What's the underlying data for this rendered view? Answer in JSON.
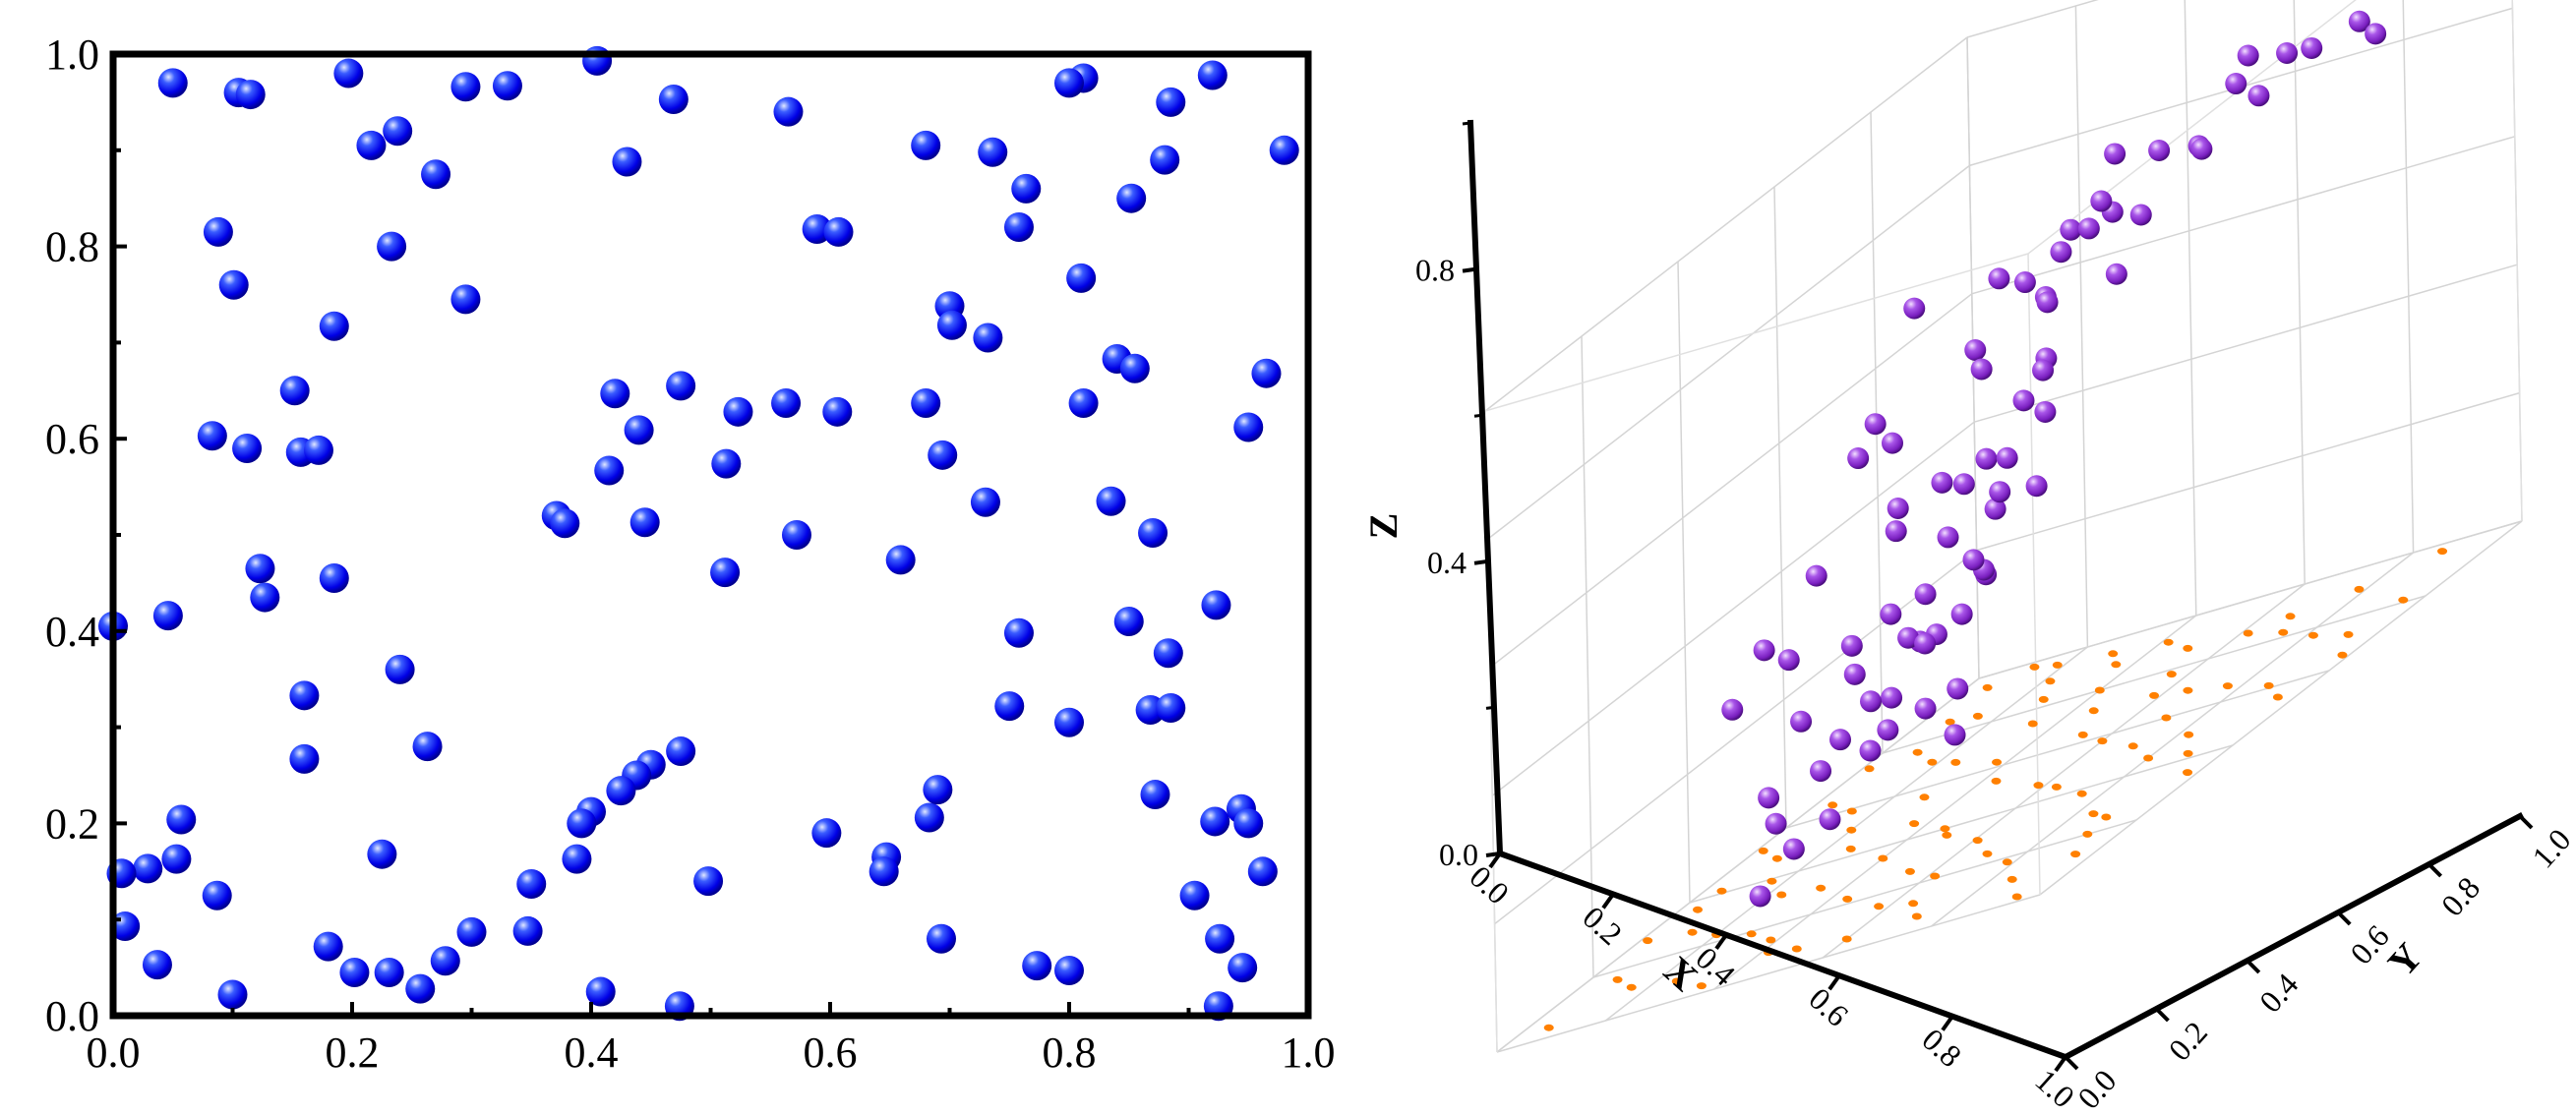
{
  "colors": {
    "left_points": "#0000ff",
    "right_points": "#9b30d9",
    "projection": "#ff8000",
    "axes": "#000000",
    "grid": "#d4d4d4"
  },
  "chart_data": [
    {
      "type": "scatter",
      "title": "",
      "xlabel": "",
      "ylabel": "",
      "xlim": [
        0,
        1
      ],
      "ylim": [
        0,
        1
      ],
      "xticks": [
        "0.0",
        "0.2",
        "0.4",
        "0.6",
        "0.8",
        "1.0"
      ],
      "yticks": [
        "0.0",
        "0.2",
        "0.4",
        "0.6",
        "0.8",
        "1.0"
      ],
      "grid": false,
      "marker": "sphere",
      "points": [
        [
          0.05,
          0.97
        ],
        [
          0.105,
          0.96
        ],
        [
          0.115,
          0.958
        ],
        [
          0.197,
          0.98
        ],
        [
          0.295,
          0.966
        ],
        [
          0.33,
          0.967
        ],
        [
          0.405,
          0.993
        ],
        [
          0.469,
          0.953
        ],
        [
          0.565,
          0.94
        ],
        [
          0.92,
          0.978
        ],
        [
          0.812,
          0.975
        ],
        [
          0.8,
          0.97
        ],
        [
          0.216,
          0.905
        ],
        [
          0.238,
          0.92
        ],
        [
          0.27,
          0.875
        ],
        [
          0.43,
          0.888
        ],
        [
          0.68,
          0.905
        ],
        [
          0.736,
          0.898
        ],
        [
          0.764,
          0.86
        ],
        [
          0.885,
          0.95
        ],
        [
          0.88,
          0.89
        ],
        [
          0.98,
          0.9
        ],
        [
          0.088,
          0.815
        ],
        [
          0.101,
          0.76
        ],
        [
          0.233,
          0.8
        ],
        [
          0.295,
          0.745
        ],
        [
          0.589,
          0.818
        ],
        [
          0.607,
          0.815
        ],
        [
          0.758,
          0.82
        ],
        [
          0.852,
          0.85
        ],
        [
          0.185,
          0.717
        ],
        [
          0.81,
          0.767
        ],
        [
          0.7,
          0.738
        ],
        [
          0.702,
          0.718
        ],
        [
          0.732,
          0.705
        ],
        [
          0.84,
          0.683
        ],
        [
          0.855,
          0.673
        ],
        [
          0.965,
          0.668
        ],
        [
          0.152,
          0.65
        ],
        [
          0.083,
          0.603
        ],
        [
          0.112,
          0.59
        ],
        [
          0.157,
          0.586
        ],
        [
          0.172,
          0.588
        ],
        [
          0.42,
          0.647
        ],
        [
          0.44,
          0.609
        ],
        [
          0.415,
          0.567
        ],
        [
          0.475,
          0.655
        ],
        [
          0.513,
          0.574
        ],
        [
          0.523,
          0.628
        ],
        [
          0.563,
          0.637
        ],
        [
          0.606,
          0.628
        ],
        [
          0.68,
          0.637
        ],
        [
          0.694,
          0.583
        ],
        [
          0.812,
          0.637
        ],
        [
          0.95,
          0.612
        ],
        [
          0.371,
          0.52
        ],
        [
          0.378,
          0.512
        ],
        [
          0.445,
          0.513
        ],
        [
          0.572,
          0.5
        ],
        [
          0.73,
          0.534
        ],
        [
          0.835,
          0.535
        ],
        [
          0.87,
          0.502
        ],
        [
          0.123,
          0.465
        ],
        [
          0.127,
          0.435
        ],
        [
          0.185,
          0.455
        ],
        [
          0.512,
          0.461
        ],
        [
          0.659,
          0.474
        ],
        [
          0.0,
          0.405
        ],
        [
          0.046,
          0.416
        ],
        [
          0.758,
          0.398
        ],
        [
          0.85,
          0.41
        ],
        [
          0.923,
          0.427
        ],
        [
          0.24,
          0.36
        ],
        [
          0.16,
          0.333
        ],
        [
          0.16,
          0.267
        ],
        [
          0.263,
          0.28
        ],
        [
          0.75,
          0.322
        ],
        [
          0.8,
          0.305
        ],
        [
          0.868,
          0.318
        ],
        [
          0.885,
          0.32
        ],
        [
          0.883,
          0.377
        ],
        [
          0.475,
          0.275
        ],
        [
          0.45,
          0.261
        ],
        [
          0.438,
          0.25
        ],
        [
          0.425,
          0.234
        ],
        [
          0.4,
          0.212
        ],
        [
          0.392,
          0.2
        ],
        [
          0.388,
          0.163
        ],
        [
          0.35,
          0.137
        ],
        [
          0.347,
          0.088
        ],
        [
          0.3,
          0.087
        ],
        [
          0.278,
          0.057
        ],
        [
          0.257,
          0.028
        ],
        [
          0.231,
          0.045
        ],
        [
          0.202,
          0.045
        ],
        [
          0.18,
          0.072
        ],
        [
          0.057,
          0.204
        ],
        [
          0.053,
          0.163
        ],
        [
          0.029,
          0.153
        ],
        [
          0.007,
          0.148
        ],
        [
          0.01,
          0.093
        ],
        [
          0.037,
          0.053
        ],
        [
          0.087,
          0.125
        ],
        [
          0.1,
          0.022
        ],
        [
          0.225,
          0.168
        ],
        [
          0.408,
          0.025
        ],
        [
          0.474,
          0.01
        ],
        [
          0.498,
          0.14
        ],
        [
          0.597,
          0.19
        ],
        [
          0.647,
          0.165
        ],
        [
          0.645,
          0.15
        ],
        [
          0.683,
          0.206
        ],
        [
          0.69,
          0.235
        ],
        [
          0.693,
          0.08
        ],
        [
          0.773,
          0.052
        ],
        [
          0.8,
          0.047
        ],
        [
          0.872,
          0.23
        ],
        [
          0.905,
          0.125
        ],
        [
          0.922,
          0.202
        ],
        [
          0.944,
          0.215
        ],
        [
          0.95,
          0.2
        ],
        [
          0.962,
          0.15
        ],
        [
          0.926,
          0.08
        ],
        [
          0.945,
          0.05
        ],
        [
          0.925,
          0.01
        ]
      ]
    },
    {
      "type": "scatter",
      "title": "",
      "xlabel": "X",
      "ylabel": "Y",
      "zlabel": "Z",
      "xlim": [
        0,
        1
      ],
      "ylim": [
        0,
        1
      ],
      "zlim": [
        0,
        1
      ],
      "xticks": [
        "0.0",
        "0.2",
        "0.4",
        "0.6",
        "0.8",
        "1.0"
      ],
      "yticks": [
        "0.0",
        "0.2",
        "0.4",
        "0.6",
        "0.8",
        "1.0"
      ],
      "zticks": [
        "0.0",
        "0.4",
        "0.8"
      ],
      "grid": true,
      "marker": "sphere",
      "projection_on_floor": true,
      "points": [
        [
          0.11,
          0.93,
          0.93
        ],
        [
          0.11,
          0.87,
          0.96
        ],
        [
          0.12,
          0.9,
          0.97
        ],
        [
          0.08,
          0.94,
          0.91
        ],
        [
          0.28,
          0.97,
          0.95
        ],
        [
          0.2,
          0.95,
          0.98
        ],
        [
          0.27,
          0.99,
          0.92
        ],
        [
          0.39,
          0.98,
          0.97
        ],
        [
          0.5,
          0.98,
          0.96
        ],
        [
          0.63,
          0.99,
          0.95
        ],
        [
          0.83,
          0.96,
          0.95
        ],
        [
          0.96,
          0.91,
          0.96
        ],
        [
          0.2,
          0.67,
          0.88
        ],
        [
          0.04,
          0.55,
          0.86
        ],
        [
          0.05,
          0.63,
          0.85
        ],
        [
          0.17,
          0.5,
          0.8
        ],
        [
          0.2,
          0.6,
          0.8
        ],
        [
          0.35,
          0.58,
          0.88
        ],
        [
          0.48,
          0.67,
          0.86
        ],
        [
          0.51,
          0.64,
          0.84
        ],
        [
          0.62,
          0.72,
          0.85
        ],
        [
          0.65,
          0.68,
          0.83
        ],
        [
          0.9,
          0.7,
          0.93
        ],
        [
          0.1,
          0.35,
          0.7
        ],
        [
          0.12,
          0.42,
          0.69
        ],
        [
          0.46,
          0.55,
          0.72
        ],
        [
          0.52,
          0.47,
          0.7
        ],
        [
          0.72,
          0.66,
          0.74
        ],
        [
          0.76,
          0.53,
          0.68
        ],
        [
          0.85,
          0.58,
          0.75
        ],
        [
          0.92,
          0.61,
          0.73
        ],
        [
          0.05,
          0.18,
          0.58
        ],
        [
          0.15,
          0.4,
          0.62
        ],
        [
          0.23,
          0.34,
          0.55
        ],
        [
          0.3,
          0.36,
          0.52
        ],
        [
          0.36,
          0.45,
          0.58
        ],
        [
          0.47,
          0.48,
          0.5
        ],
        [
          0.55,
          0.35,
          0.5
        ],
        [
          0.66,
          0.53,
          0.56
        ],
        [
          0.7,
          0.48,
          0.52
        ],
        [
          0.82,
          0.44,
          0.53
        ],
        [
          0.98,
          0.53,
          0.47
        ],
        [
          0.1,
          0.22,
          0.42
        ],
        [
          0.2,
          0.2,
          0.41
        ],
        [
          0.28,
          0.23,
          0.41
        ],
        [
          0.33,
          0.34,
          0.4
        ],
        [
          0.46,
          0.36,
          0.4
        ],
        [
          0.58,
          0.36,
          0.35
        ],
        [
          0.62,
          0.46,
          0.38
        ],
        [
          0.75,
          0.44,
          0.38
        ],
        [
          0.93,
          0.38,
          0.4
        ],
        [
          0.02,
          0.13,
          0.28
        ],
        [
          0.15,
          0.17,
          0.31
        ],
        [
          0.23,
          0.2,
          0.27
        ],
        [
          0.4,
          0.23,
          0.24
        ],
        [
          0.5,
          0.35,
          0.26
        ],
        [
          0.6,
          0.31,
          0.28
        ],
        [
          0.68,
          0.41,
          0.26
        ],
        [
          0.79,
          0.38,
          0.3
        ],
        [
          0.06,
          0.07,
          0.18
        ],
        [
          0.12,
          0.12,
          0.21
        ],
        [
          0.2,
          0.15,
          0.18
        ],
        [
          0.32,
          0.18,
          0.2
        ],
        [
          0.42,
          0.3,
          0.24
        ],
        [
          0.47,
          0.26,
          0.18
        ],
        [
          0.56,
          0.3,
          0.14
        ],
        [
          0.64,
          0.28,
          0.16
        ],
        [
          0.7,
          0.25,
          0.12
        ],
        [
          0.1,
          0.05,
          0.03
        ],
        [
          0.2,
          0.08,
          0.05
        ],
        [
          0.3,
          0.1,
          0.07
        ],
        [
          0.42,
          0.12,
          0.12
        ],
        [
          0.58,
          0.13,
          0.12
        ],
        [
          0.72,
          0.3,
          0.08
        ],
        [
          0.88,
          0.38,
          0.08
        ],
        [
          0.55,
          0.1,
          0.34
        ],
        [
          0.9,
          0.76,
          0.25
        ],
        [
          0.5,
          0.17,
          0.03
        ]
      ],
      "floor_points": [
        [
          0.02,
          0.12
        ],
        [
          0.04,
          0.18
        ],
        [
          0.05,
          0.06
        ],
        [
          0.06,
          0.3
        ],
        [
          0.08,
          0.42
        ],
        [
          0.1,
          0.22
        ],
        [
          0.11,
          0.35
        ],
        [
          0.13,
          0.5
        ],
        [
          0.14,
          0.62
        ],
        [
          0.15,
          0.08
        ],
        [
          0.16,
          0.14
        ],
        [
          0.17,
          0.27
        ],
        [
          0.18,
          0.72
        ],
        [
          0.2,
          0.4
        ],
        [
          0.22,
          0.55
        ],
        [
          0.23,
          0.82
        ],
        [
          0.24,
          0.1
        ],
        [
          0.26,
          0.33
        ],
        [
          0.27,
          0.92
        ],
        [
          0.28,
          0.46
        ],
        [
          0.3,
          0.18
        ],
        [
          0.31,
          0.66
        ],
        [
          0.33,
          0.25
        ],
        [
          0.34,
          0.76
        ],
        [
          0.36,
          0.05
        ],
        [
          0.37,
          0.52
        ],
        [
          0.38,
          0.37
        ],
        [
          0.39,
          0.88
        ],
        [
          0.41,
          0.13
        ],
        [
          0.42,
          0.6
        ],
        [
          0.44,
          0.29
        ],
        [
          0.45,
          0.95
        ],
        [
          0.46,
          0.44
        ],
        [
          0.48,
          0.71
        ],
        [
          0.49,
          0.2
        ],
        [
          0.5,
          0.83
        ],
        [
          0.52,
          0.09
        ],
        [
          0.53,
          0.58
        ],
        [
          0.54,
          0.36
        ],
        [
          0.56,
          0.64
        ],
        [
          0.57,
          0.27
        ],
        [
          0.58,
          0.9
        ],
        [
          0.6,
          0.47
        ],
        [
          0.61,
          0.16
        ],
        [
          0.62,
          0.74
        ],
        [
          0.64,
          0.05
        ],
        [
          0.65,
          0.4
        ],
        [
          0.66,
          0.97
        ],
        [
          0.68,
          0.24
        ],
        [
          0.69,
          0.61
        ],
        [
          0.7,
          0.33
        ],
        [
          0.72,
          0.85
        ],
        [
          0.73,
          0.12
        ],
        [
          0.74,
          0.53
        ],
        [
          0.76,
          0.69
        ],
        [
          0.77,
          0.2
        ],
        [
          0.78,
          0.45
        ],
        [
          0.8,
          0.91
        ],
        [
          0.81,
          0.3
        ],
        [
          0.82,
          0.78
        ],
        [
          0.84,
          0.08
        ],
        [
          0.85,
          0.57
        ],
        [
          0.86,
          0.38
        ],
        [
          0.88,
          0.66
        ],
        [
          0.89,
          0.15
        ],
        [
          0.9,
          0.86
        ],
        [
          0.92,
          0.26
        ],
        [
          0.93,
          0.49
        ],
        [
          0.94,
          0.72
        ],
        [
          0.96,
          0.06
        ],
        [
          0.97,
          0.35
        ],
        [
          0.98,
          0.94
        ],
        [
          0.03,
          0.88
        ],
        [
          0.09,
          0.78
        ],
        [
          0.19,
          0.95
        ],
        [
          0.29,
          0.58
        ],
        [
          0.35,
          0.98
        ],
        [
          0.47,
          0.02
        ],
        [
          0.55,
          0.8
        ],
        [
          0.63,
          0.5
        ],
        [
          0.71,
          0.02
        ],
        [
          0.79,
          0.62
        ],
        [
          0.87,
          0.95
        ],
        [
          0.95,
          0.6
        ],
        [
          0.12,
          0.68
        ],
        [
          0.25,
          0.02
        ],
        [
          0.4,
          0.7
        ],
        [
          0.59,
          0.05
        ],
        [
          0.75,
          0.9
        ],
        [
          0.91,
          0.42
        ]
      ]
    }
  ]
}
